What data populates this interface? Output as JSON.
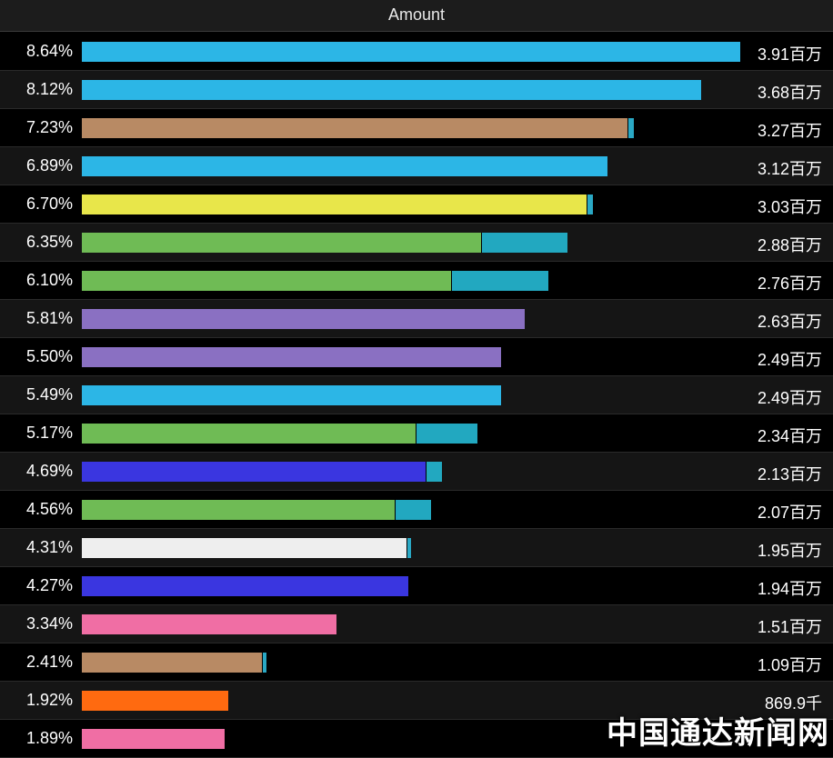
{
  "header": {
    "title": "Amount"
  },
  "watermark": "中国通达新闻网",
  "chart_data": {
    "type": "bar",
    "orientation": "horizontal",
    "title": "Amount",
    "max_value": 3.91,
    "rows": [
      {
        "percent": "8.64%",
        "amount_label": "3.91百万",
        "segments": [
          {
            "value": 3.91,
            "color": "#2cb6e6"
          }
        ]
      },
      {
        "percent": "8.12%",
        "amount_label": "3.68百万",
        "segments": [
          {
            "value": 3.68,
            "color": "#2cb6e6"
          }
        ]
      },
      {
        "percent": "7.23%",
        "amount_label": "3.27百万",
        "segments": [
          {
            "value": 3.24,
            "color": "#b88a64"
          },
          {
            "value": 0.03,
            "color": "#2aa8c4"
          }
        ]
      },
      {
        "percent": "6.89%",
        "amount_label": "3.12百万",
        "segments": [
          {
            "value": 3.12,
            "color": "#2cb6e6"
          }
        ]
      },
      {
        "percent": "6.70%",
        "amount_label": "3.03百万",
        "segments": [
          {
            "value": 3.0,
            "color": "#e8e64a"
          },
          {
            "value": 0.03,
            "color": "#2aa8c4"
          }
        ]
      },
      {
        "percent": "6.35%",
        "amount_label": "2.88百万",
        "segments": [
          {
            "value": 2.37,
            "color": "#6fbb55"
          },
          {
            "value": 0.51,
            "color": "#22a8c0"
          }
        ]
      },
      {
        "percent": "6.10%",
        "amount_label": "2.76百万",
        "segments": [
          {
            "value": 2.19,
            "color": "#6fbb55"
          },
          {
            "value": 0.57,
            "color": "#22a8c0"
          }
        ]
      },
      {
        "percent": "5.81%",
        "amount_label": "2.63百万",
        "segments": [
          {
            "value": 2.63,
            "color": "#8a70c2"
          }
        ]
      },
      {
        "percent": "5.50%",
        "amount_label": "2.49百万",
        "segments": [
          {
            "value": 2.49,
            "color": "#8a70c2"
          }
        ]
      },
      {
        "percent": "5.49%",
        "amount_label": "2.49百万",
        "segments": [
          {
            "value": 2.49,
            "color": "#2cb6e6"
          }
        ]
      },
      {
        "percent": "5.17%",
        "amount_label": "2.34百万",
        "segments": [
          {
            "value": 1.98,
            "color": "#6fbb55"
          },
          {
            "value": 0.36,
            "color": "#22a8c0"
          }
        ]
      },
      {
        "percent": "4.69%",
        "amount_label": "2.13百万",
        "segments": [
          {
            "value": 2.04,
            "color": "#3a36e0"
          },
          {
            "value": 0.09,
            "color": "#22a8c0"
          }
        ]
      },
      {
        "percent": "4.56%",
        "amount_label": "2.07百万",
        "segments": [
          {
            "value": 1.86,
            "color": "#6fbb55"
          },
          {
            "value": 0.21,
            "color": "#22a8c0"
          }
        ]
      },
      {
        "percent": "4.31%",
        "amount_label": "1.95百万",
        "segments": [
          {
            "value": 1.93,
            "color": "#eeeeee"
          },
          {
            "value": 0.02,
            "color": "#2aa8c4"
          }
        ]
      },
      {
        "percent": "4.27%",
        "amount_label": "1.94百万",
        "segments": [
          {
            "value": 1.94,
            "color": "#3a36e0"
          }
        ]
      },
      {
        "percent": "3.34%",
        "amount_label": "1.51百万",
        "segments": [
          {
            "value": 1.51,
            "color": "#f06ea4"
          }
        ]
      },
      {
        "percent": "2.41%",
        "amount_label": "1.09百万",
        "segments": [
          {
            "value": 1.07,
            "color": "#b88a64"
          },
          {
            "value": 0.02,
            "color": "#2aa8c4"
          }
        ]
      },
      {
        "percent": "1.92%",
        "amount_label": "869.9千",
        "segments": [
          {
            "value": 0.8699,
            "color": "#ff6a10"
          }
        ]
      },
      {
        "percent": "1.89%",
        "amount_label": "",
        "segments": [
          {
            "value": 0.85,
            "color": "#f06ea4"
          }
        ]
      }
    ]
  }
}
